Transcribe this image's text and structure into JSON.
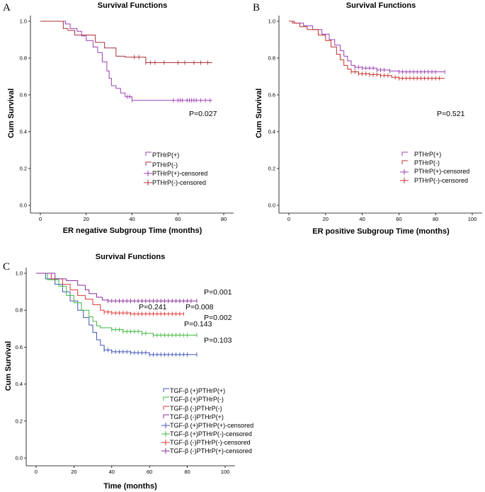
{
  "chart_data": [
    {
      "type": "line",
      "panel": "A",
      "title": "Survival Functions",
      "xlabel": "ER negative Subgroup  Time (months)",
      "ylabel": "Cum Survival",
      "xlim": [
        0,
        80
      ],
      "ylim": [
        0,
        1
      ],
      "xticks": [
        "0",
        "20",
        "40",
        "60",
        "80"
      ],
      "yticks": [
        "0.0",
        "0.2",
        "0.4",
        "0.6",
        "0.8",
        "1.0"
      ],
      "annotations": [
        "P=0.027"
      ],
      "legend": [
        "PTHrP(+)",
        "PTHrP(-)",
        "PTHrP(+)-censored",
        "PTHrP(-)-censored"
      ],
      "series": [
        {
          "name": "PTHrP(+)",
          "color": "#9b3fb5",
          "x": [
            0,
            11,
            13,
            16,
            18,
            20,
            23,
            25,
            27,
            29,
            30,
            31,
            33,
            35,
            37,
            40,
            75
          ],
          "y": [
            1.0,
            0.985,
            0.96,
            0.945,
            0.92,
            0.895,
            0.86,
            0.83,
            0.78,
            0.73,
            0.69,
            0.65,
            0.635,
            0.61,
            0.59,
            0.57,
            0.57
          ],
          "censored_x": [
            38,
            39,
            40,
            58,
            60,
            61,
            62,
            64,
            65,
            66,
            67,
            68,
            70,
            72,
            74
          ]
        },
        {
          "name": "PTHrP(-)",
          "color": "#a8323a",
          "x": [
            0,
            10,
            12,
            15,
            24,
            28,
            33,
            37,
            46,
            75
          ],
          "y": [
            1.0,
            0.96,
            0.95,
            0.925,
            0.885,
            0.855,
            0.81,
            0.805,
            0.775,
            0.775
          ],
          "censored_x": [
            41,
            43,
            46,
            48,
            50,
            54,
            60,
            63,
            67,
            70,
            73
          ]
        }
      ]
    },
    {
      "type": "line",
      "panel": "B",
      "title": "Survival Functions",
      "xlabel": "ER positive Subgroup  Time (months)",
      "ylabel": "Cum Survival",
      "xlim": [
        0,
        100
      ],
      "ylim": [
        0,
        1
      ],
      "xticks": [
        "0",
        "20",
        "40",
        "60",
        "80",
        "100"
      ],
      "yticks": [
        "0.0",
        "0.2",
        "0.4",
        "0.6",
        "0.8",
        "1.0"
      ],
      "annotations": [
        "P=0.521"
      ],
      "legend": [
        "PTHrP(+)",
        "PTHrP(-)",
        "PTHrP(+)-censored",
        "PTHrP(-)-censored"
      ],
      "series": [
        {
          "name": "PTHrP(+)",
          "color": "#9b3fb5",
          "x": [
            0,
            3,
            8,
            13,
            18,
            22,
            25,
            28,
            30,
            32,
            34,
            36,
            40,
            48,
            55,
            60,
            85
          ],
          "y": [
            1.0,
            0.99,
            0.975,
            0.955,
            0.93,
            0.9,
            0.87,
            0.84,
            0.81,
            0.785,
            0.76,
            0.75,
            0.745,
            0.735,
            0.73,
            0.725,
            0.725
          ],
          "censored_x": [
            36,
            38,
            40,
            42,
            44,
            46,
            48,
            50,
            52,
            55,
            60,
            62,
            64,
            66,
            68,
            70,
            72,
            74,
            76,
            78,
            80,
            85
          ]
        },
        {
          "name": "PTHrP(-)",
          "color": "#c8302b",
          "x": [
            0,
            2,
            6,
            10,
            16,
            20,
            23,
            26,
            28,
            30,
            32,
            34,
            38,
            44,
            50,
            56,
            60,
            85
          ],
          "y": [
            1.0,
            0.99,
            0.97,
            0.955,
            0.925,
            0.895,
            0.86,
            0.82,
            0.79,
            0.76,
            0.74,
            0.725,
            0.715,
            0.71,
            0.705,
            0.695,
            0.69,
            0.69
          ],
          "censored_x": [
            34,
            36,
            38,
            40,
            42,
            44,
            46,
            48,
            50,
            52,
            54,
            58,
            60,
            62,
            64,
            66,
            68,
            70,
            72,
            74,
            76,
            78,
            80,
            82
          ]
        }
      ]
    },
    {
      "type": "line",
      "panel": "C",
      "title": "Survival Functions",
      "xlabel": "Time (months)",
      "ylabel": "Cum Survival",
      "xlim": [
        0,
        100
      ],
      "ylim": [
        0,
        1
      ],
      "xticks": [
        "0",
        "20",
        "40",
        "60",
        "80",
        "100"
      ],
      "yticks": [
        "0.0",
        "0.2",
        "0.4",
        "0.6",
        "0.8",
        "1.0"
      ],
      "annotations": [
        "P=0.001",
        "P=0.241",
        "P=0.008",
        "P=0.002",
        "P=0.143",
        "P=0.103"
      ],
      "legend": [
        "TGF-β (+)PTHrP(+)",
        "TGF-β (+)PTHrP(-)",
        "TGF-β (-)PTHrP(-)",
        "TGF-β (-)PTHrP(+)",
        "TGF-β (+)PTHrP(+)-censored",
        "TGF-β (+)PTHrP(-)-censored",
        "TGF-β (-)PTHrP(-)-censored",
        "TGF-β (-)PTHrP(+)-censored"
      ],
      "series": [
        {
          "name": "TGF-β (+)PTHrP(+)",
          "color": "#4055b8",
          "x": [
            0,
            5,
            10,
            14,
            18,
            22,
            25,
            28,
            30,
            32,
            34,
            36,
            40,
            50,
            60,
            85
          ],
          "y": [
            1.0,
            0.97,
            0.94,
            0.9,
            0.85,
            0.8,
            0.76,
            0.72,
            0.68,
            0.64,
            0.61,
            0.585,
            0.575,
            0.57,
            0.56,
            0.56
          ],
          "censored_x": [
            36,
            38,
            40,
            42,
            44,
            46,
            48,
            50,
            52,
            54,
            56,
            58,
            60,
            62,
            64,
            66,
            68,
            70,
            72,
            74,
            76,
            78,
            80,
            85
          ]
        },
        {
          "name": "TGF-β (+)PTHrP(-)",
          "color": "#3fb83f",
          "x": [
            0,
            6,
            12,
            16,
            20,
            24,
            28,
            30,
            32,
            34,
            40,
            46,
            56,
            62,
            85
          ],
          "y": [
            1.0,
            0.965,
            0.93,
            0.88,
            0.84,
            0.8,
            0.765,
            0.74,
            0.715,
            0.705,
            0.695,
            0.685,
            0.675,
            0.665,
            0.665
          ],
          "censored_x": [
            40,
            42,
            44,
            46,
            48,
            50,
            52,
            54,
            56,
            58,
            62,
            64,
            66,
            68,
            70,
            72,
            74,
            76,
            78,
            80,
            85
          ]
        },
        {
          "name": "TGF-β (-)PTHrP(-)",
          "color": "#e03838",
          "x": [
            0,
            8,
            14,
            18,
            22,
            26,
            30,
            34,
            36,
            40,
            50,
            78
          ],
          "y": [
            1.0,
            0.97,
            0.94,
            0.91,
            0.88,
            0.86,
            0.83,
            0.8,
            0.79,
            0.785,
            0.78,
            0.78
          ],
          "censored_x": [
            36,
            38,
            40,
            42,
            44,
            46,
            48,
            50,
            52,
            54,
            56,
            58,
            60,
            62,
            64,
            66,
            68,
            70,
            72,
            74,
            76,
            78
          ]
        },
        {
          "name": "TGF-β (-)PTHrP(+)",
          "color": "#8a2e9a",
          "x": [
            0,
            10,
            16,
            22,
            26,
            28,
            32,
            35,
            38,
            85
          ],
          "y": [
            1.0,
            0.97,
            0.96,
            0.935,
            0.91,
            0.89,
            0.87,
            0.855,
            0.85,
            0.85
          ],
          "censored_x": [
            38,
            40,
            42,
            44,
            46,
            48,
            50,
            52,
            54,
            56,
            58,
            60,
            62,
            64,
            66,
            68,
            70,
            72,
            74,
            76,
            78,
            80,
            82,
            85
          ]
        }
      ]
    }
  ]
}
